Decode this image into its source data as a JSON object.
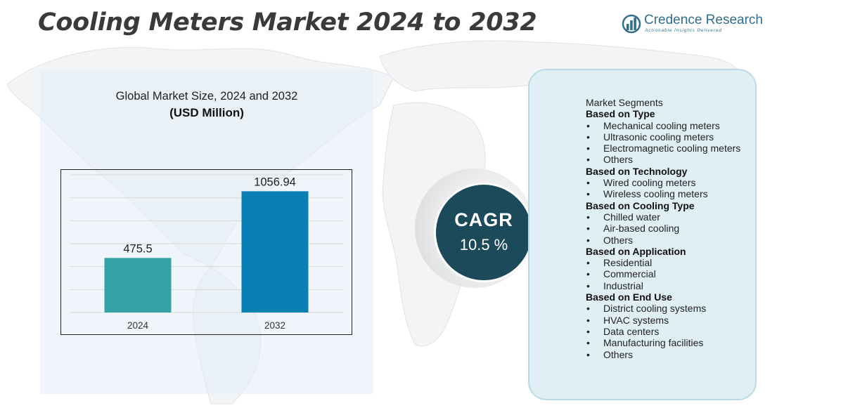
{
  "title": "Cooling Meters Market 2024 to 2032",
  "logo": {
    "name": "Credence Research",
    "tagline": "Actionable Insights Delivered",
    "icon": "bar-chart-circle-icon"
  },
  "colors": {
    "bar_2024": "#35a3a6",
    "bar_2032": "#0880b4",
    "cagr_circle": "#1c4a5a",
    "segment_panel": "#e0eef5",
    "logo": "#2f6f8c"
  },
  "chart_data": {
    "type": "bar",
    "title": "Global Market Size, 2024 and 2032",
    "unit": "(USD Million)",
    "categories": [
      "2024",
      "2032"
    ],
    "values": [
      475.5,
      1056.94
    ],
    "value_labels": [
      "475.5",
      "1056.94"
    ],
    "xlabel": "",
    "ylabel": "",
    "ylim": [
      0,
      1200
    ],
    "grid": true
  },
  "cagr": {
    "label": "CAGR",
    "value": "10.5 %"
  },
  "segments": {
    "title": "Market Segments",
    "groups": [
      {
        "name": "Based on Type",
        "items": [
          "Mechanical cooling meters",
          "Ultrasonic cooling meters",
          "Electromagnetic cooling meters",
          "Others"
        ]
      },
      {
        "name": "Based on Technology",
        "items": [
          "Wired cooling meters",
          "Wireless cooling meters"
        ]
      },
      {
        "name": "Based on Cooling Type",
        "items": [
          "Chilled water",
          "Air-based cooling",
          "Others"
        ]
      },
      {
        "name": "Based on Application",
        "items": [
          "Residential",
          "Commercial",
          "Industrial"
        ]
      },
      {
        "name": "Based on End Use",
        "items": [
          "District cooling systems",
          "HVAC systems",
          "Data centers",
          "Manufacturing facilities",
          "Others"
        ]
      }
    ]
  }
}
